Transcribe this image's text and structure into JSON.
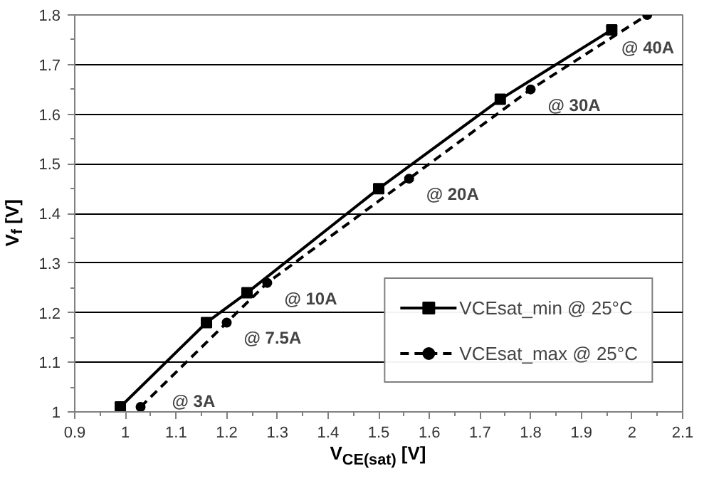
{
  "chart_data": {
    "type": "line",
    "xlabel": "V$_{CE(sat)}$ [V]",
    "ylabel": "V$_{f}$ [V]",
    "xlim": [
      0.9,
      2.1
    ],
    "xticks": [
      0.9,
      1,
      1.1,
      1.2,
      1.3,
      1.4,
      1.5,
      1.6,
      1.7,
      1.8,
      1.9,
      2,
      2.1
    ],
    "ylim": [
      1,
      1.8
    ],
    "yticks": [
      1,
      1.1,
      1.2,
      1.3,
      1.4,
      1.5,
      1.6,
      1.7,
      1.8
    ],
    "grid": "y",
    "legend": "bottom right",
    "series": [
      {
        "name": "VCEsat_min @ 25°C",
        "color": "#000000",
        "marker": "square",
        "line_style": "solid",
        "x": [
          0.99,
          1.16,
          1.24,
          1.5,
          1.74,
          1.96
        ],
        "values": [
          1.01,
          1.18,
          1.24,
          1.45,
          1.63,
          1.77
        ]
      },
      {
        "name": "VCEsat_max @ 25°C",
        "color": "#000000",
        "marker": "circle",
        "line_style": "dashed",
        "x": [
          1.03,
          1.2,
          1.28,
          1.56,
          1.8,
          2.03
        ],
        "values": [
          1.01,
          1.18,
          1.26,
          1.47,
          1.65,
          1.8
        ]
      }
    ],
    "annotations": [
      {
        "text": "@ 3A",
        "x": 1.03,
        "y": 1.01
      },
      {
        "text": "@ 7.5A",
        "x": 1.2,
        "y": 1.18
      },
      {
        "text": "@ 10A",
        "x": 1.28,
        "y": 1.26
      },
      {
        "text": "@ 20A",
        "x": 1.56,
        "y": 1.47
      },
      {
        "text": "@ 30A",
        "x": 1.8,
        "y": 1.65
      },
      {
        "text": "@ 40A",
        "x": 2.03,
        "y": 1.8
      }
    ]
  }
}
